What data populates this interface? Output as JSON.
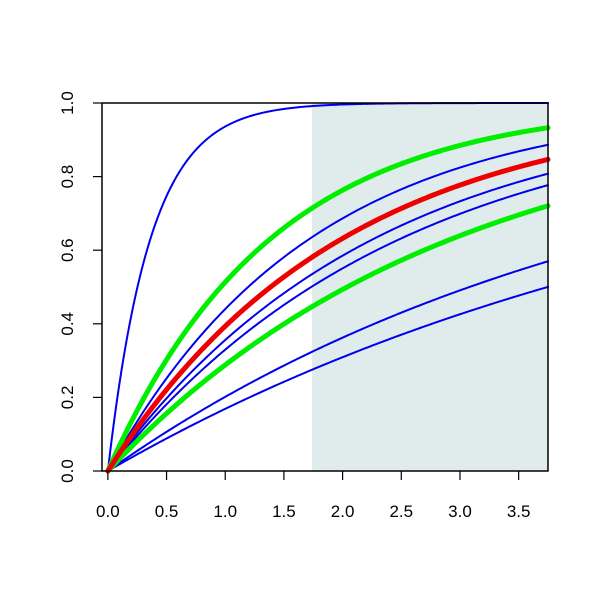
{
  "chart_data": {
    "type": "line",
    "title": "",
    "xlabel": "",
    "ylabel": "",
    "xlim": [
      -0.05,
      3.75
    ],
    "ylim": [
      0,
      1.0
    ],
    "x_ticks": [
      "0.0",
      "0.5",
      "1.0",
      "1.5",
      "2.0",
      "2.5",
      "3.0",
      "3.5"
    ],
    "y_ticks": [
      "0.0",
      "0.2",
      "0.4",
      "0.6",
      "0.8",
      "1.0"
    ],
    "shaded_region": {
      "x_from": 1.74,
      "x_to": 3.75,
      "color": "#dfeceb"
    },
    "series": [
      {
        "color": "#0000ee",
        "width": "thin",
        "rate": 2.75,
        "values": [
          0,
          0.75,
          0.94,
          0.985,
          0.996,
          1.0,
          1.0,
          1.0,
          1.0
        ]
      },
      {
        "color": "#0000ee",
        "width": "thin",
        "rate": 0.58,
        "values": [
          0,
          0.25,
          0.44,
          0.58,
          0.69,
          0.77,
          0.83,
          0.87,
          0.89
        ]
      },
      {
        "color": "#0000ee",
        "width": "thin",
        "rate": 0.44,
        "values": [
          0,
          0.2,
          0.36,
          0.49,
          0.59,
          0.67,
          0.74,
          0.79,
          0.83
        ]
      },
      {
        "color": "#0000ee",
        "width": "thin",
        "rate": 0.4,
        "values": [
          0,
          0.18,
          0.33,
          0.45,
          0.55,
          0.63,
          0.7,
          0.75,
          0.78
        ]
      },
      {
        "color": "#0000ee",
        "width": "thin",
        "rate": 0.225,
        "values": [
          0,
          0.11,
          0.2,
          0.28,
          0.36,
          0.43,
          0.49,
          0.54,
          0.57
        ]
      },
      {
        "color": "#0000ee",
        "width": "thin",
        "rate": 0.185,
        "values": [
          0,
          0.09,
          0.17,
          0.24,
          0.31,
          0.37,
          0.43,
          0.48,
          0.5
        ]
      },
      {
        "color": "#00ee00",
        "width": "thick",
        "rate": 0.72,
        "values": [
          0,
          0.3,
          0.51,
          0.66,
          0.76,
          0.83,
          0.88,
          0.92,
          0.93
        ]
      },
      {
        "color": "#00ee00",
        "width": "thick",
        "rate": 0.34,
        "values": [
          0,
          0.16,
          0.29,
          0.4,
          0.49,
          0.57,
          0.64,
          0.7,
          0.72
        ]
      },
      {
        "color": "#ee0000",
        "width": "thick",
        "rate": 0.5,
        "values": [
          0,
          0.22,
          0.39,
          0.53,
          0.63,
          0.71,
          0.78,
          0.83,
          0.85
        ]
      }
    ],
    "series_x": [
      0,
      0.5,
      1.0,
      1.5,
      2.0,
      2.5,
      3.0,
      3.5,
      3.75
    ],
    "grid": false,
    "legend": "none"
  }
}
